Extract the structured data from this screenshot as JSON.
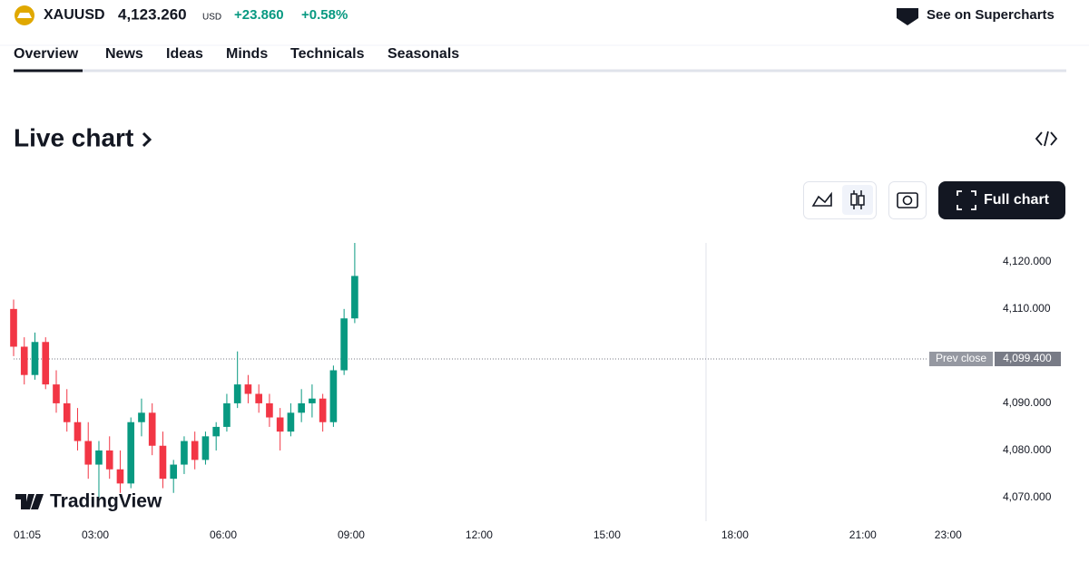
{
  "header": {
    "symbol": "XAUUSD",
    "price": "4,123.260",
    "currency": "USD",
    "change": "+23.860",
    "change_percent": "+0.58%",
    "supercharts": "See on Supercharts"
  },
  "tabs": [
    "Overview",
    "News",
    "Ideas",
    "Minds",
    "Technicals",
    "Seasonals"
  ],
  "section_title": "Live chart",
  "full_chart": "Full chart",
  "watermark": "TradingView",
  "chart_data": {
    "type": "candlestick",
    "up_color": "#089981",
    "down_color": "#f23645",
    "x": [
      "01:05",
      "01:20",
      "01:35",
      "01:50",
      "02:05",
      "02:20",
      "02:35",
      "02:50",
      "03:05",
      "03:20",
      "03:35",
      "03:50",
      "04:05",
      "04:20",
      "04:35",
      "04:50",
      "05:05",
      "05:20",
      "05:35",
      "05:50",
      "06:05",
      "06:20",
      "06:35",
      "06:50",
      "07:05",
      "07:20",
      "07:35",
      "07:50",
      "08:05",
      "08:20",
      "08:35",
      "08:50",
      "09:05"
    ],
    "open": [
      4110,
      4102,
      4096,
      4103,
      4094,
      4090,
      4086,
      4082,
      4077,
      4080,
      4076,
      4073,
      4086,
      4088,
      4081,
      4074,
      4077,
      4082,
      4078,
      4083,
      4085,
      4090,
      4094,
      4092,
      4090,
      4087,
      4084,
      4088,
      4090,
      4091,
      4086,
      4097,
      4108
    ],
    "high": [
      4112,
      4104,
      4105,
      4104,
      4097,
      4093,
      4089,
      4086,
      4082,
      4083,
      4080,
      4087,
      4091,
      4090,
      4084,
      4078,
      4083,
      4084,
      4084,
      4086,
      4092,
      4101,
      4096,
      4094,
      4092,
      4089,
      4090,
      4093,
      4094,
      4092,
      4098,
      4110,
      4124
    ],
    "low": [
      4100,
      4094,
      4095,
      4093,
      4088,
      4084,
      4080,
      4074,
      4069,
      4074,
      4071,
      4072,
      4083,
      4079,
      4072,
      4071,
      4075,
      4076,
      4077,
      4080,
      4084,
      4089,
      4090,
      4088,
      4085,
      4080,
      4083,
      4086,
      4087,
      4084,
      4085,
      4096,
      4107
    ],
    "close": [
      4102,
      4096,
      4103,
      4094,
      4090,
      4086,
      4082,
      4077,
      4080,
      4076,
      4073,
      4086,
      4088,
      4081,
      4074,
      4077,
      4082,
      4078,
      4083,
      4085,
      4090,
      4094,
      4092,
      4090,
      4087,
      4084,
      4088,
      4090,
      4091,
      4086,
      4097,
      4108,
      4117
    ],
    "xlim": [
      "01:05",
      "23:59"
    ],
    "xticks": [
      "01:05",
      "03:00",
      "06:00",
      "09:00",
      "12:00",
      "15:00",
      "18:00",
      "21:00",
      "23:00"
    ],
    "ylim": [
      4065,
      4124
    ],
    "yticks": [
      {
        "value": 4070,
        "label": "4,070.000"
      },
      {
        "value": 4080,
        "label": "4,080.000"
      },
      {
        "value": 4090,
        "label": "4,090.000"
      },
      {
        "value": 4110,
        "label": "4,110.000"
      },
      {
        "value": 4120,
        "label": "4,120.000"
      }
    ],
    "prev_close": {
      "label": "Prev close",
      "value": 4099.4,
      "value_label": "4,099.400"
    }
  }
}
